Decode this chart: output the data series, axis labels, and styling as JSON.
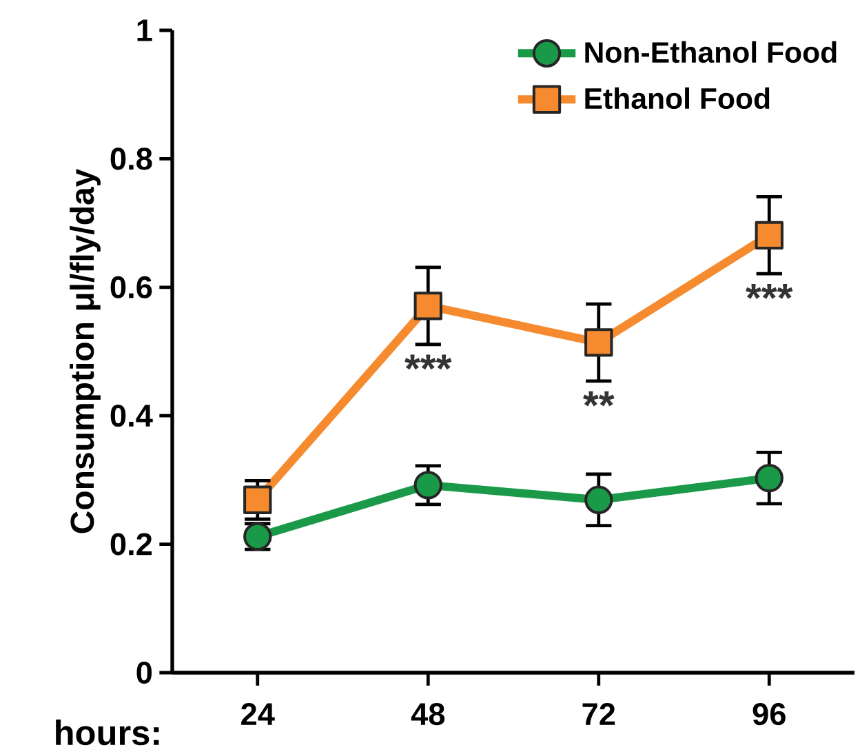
{
  "chart_data": {
    "type": "line",
    "xlabel": "hours:",
    "ylabel": "Consumption μl/fly/day",
    "categories": [
      "24",
      "48",
      "72",
      "96"
    ],
    "series": [
      {
        "name": "Non-Ethanol Food",
        "color": "#1a9a48",
        "marker": "circle",
        "values": [
          0.212,
          0.292,
          0.269,
          0.303
        ],
        "errors": [
          0.02,
          0.03,
          0.04,
          0.04
        ]
      },
      {
        "name": "Ethanol Food",
        "color": "#f58a2e",
        "marker": "square",
        "values": [
          0.269,
          0.571,
          0.514,
          0.681
        ],
        "errors": [
          0.03,
          0.06,
          0.06,
          0.06
        ]
      }
    ],
    "ylim": [
      0,
      1
    ],
    "yticks": [
      0,
      0.2,
      0.4,
      0.6,
      0.8,
      1
    ],
    "legend": "top right",
    "line_style": "solid",
    "annotations": [
      "***",
      "**",
      "***"
    ]
  }
}
